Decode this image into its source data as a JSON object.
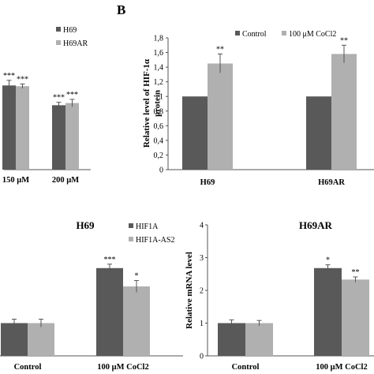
{
  "panel_label": "B",
  "chart_data": [
    {
      "id": "A_cropped",
      "type": "bar",
      "title": "",
      "categories": [
        "150 µM",
        "200 µM"
      ],
      "series": [
        {
          "name": "H69",
          "color": "#595959",
          "values": [
            1.15,
            0.88
          ],
          "errors": [
            0.07,
            0.04
          ],
          "labels": [
            "***",
            "***"
          ]
        },
        {
          "name": "H69AR",
          "color": "#b0b0b0",
          "values": [
            1.14,
            0.91
          ],
          "errors": [
            0.03,
            0.05
          ],
          "labels": [
            "***",
            "***"
          ]
        }
      ],
      "ylim": [
        0,
        1.8
      ],
      "legend": "top-right"
    },
    {
      "id": "B",
      "type": "bar",
      "title": "",
      "categories": [
        "H69",
        "H69AR"
      ],
      "series": [
        {
          "name": "Control",
          "color": "#595959",
          "values": [
            1.0,
            1.0
          ],
          "errors": [
            0.0,
            0.0
          ],
          "labels": [
            "",
            ""
          ]
        },
        {
          "name": "100 μM CoCl2",
          "color": "#b0b0b0",
          "values": [
            1.45,
            1.58
          ],
          "errors": [
            0.13,
            0.12
          ],
          "labels": [
            "**",
            "**"
          ]
        }
      ],
      "ylabel": "Relative level of HIF-1α protein",
      "yticks": [
        "0",
        "0,2",
        "0,4",
        "0,6",
        "0,8",
        "1",
        "1,2",
        "1,4",
        "1,6",
        "1,8"
      ],
      "ylim": [
        0,
        1.8
      ],
      "legend": "top"
    },
    {
      "id": "C_left",
      "type": "bar",
      "title": "H69",
      "categories": [
        "Control",
        "100 μM CoCl2"
      ],
      "series": [
        {
          "name": "HIF1A",
          "color": "#595959",
          "values": [
            1.0,
            2.68
          ],
          "errors": [
            0.12,
            0.12
          ],
          "labels": [
            "",
            "***"
          ]
        },
        {
          "name": "HIF1A-AS2",
          "color": "#b0b0b0",
          "values": [
            1.0,
            2.12
          ],
          "errors": [
            0.12,
            0.18
          ],
          "labels": [
            "",
            "*"
          ]
        }
      ],
      "ylim": [
        0,
        4
      ],
      "legend": "top-left"
    },
    {
      "id": "C_right",
      "type": "bar",
      "title": "H69AR",
      "categories": [
        "Control",
        "100 μM CoCl2"
      ],
      "series": [
        {
          "name": "",
          "color": "#595959",
          "values": [
            1.0,
            2.68
          ],
          "errors": [
            0.1,
            0.1
          ],
          "labels": [
            "",
            "*"
          ]
        },
        {
          "name": "",
          "color": "#b0b0b0",
          "values": [
            1.0,
            2.33
          ],
          "errors": [
            0.08,
            0.08
          ],
          "labels": [
            "",
            "**"
          ]
        }
      ],
      "ylabel": "Relative mRNA level",
      "yticks": [
        "0",
        "1",
        "2",
        "3",
        "4"
      ],
      "ylim": [
        0,
        4
      ]
    }
  ]
}
